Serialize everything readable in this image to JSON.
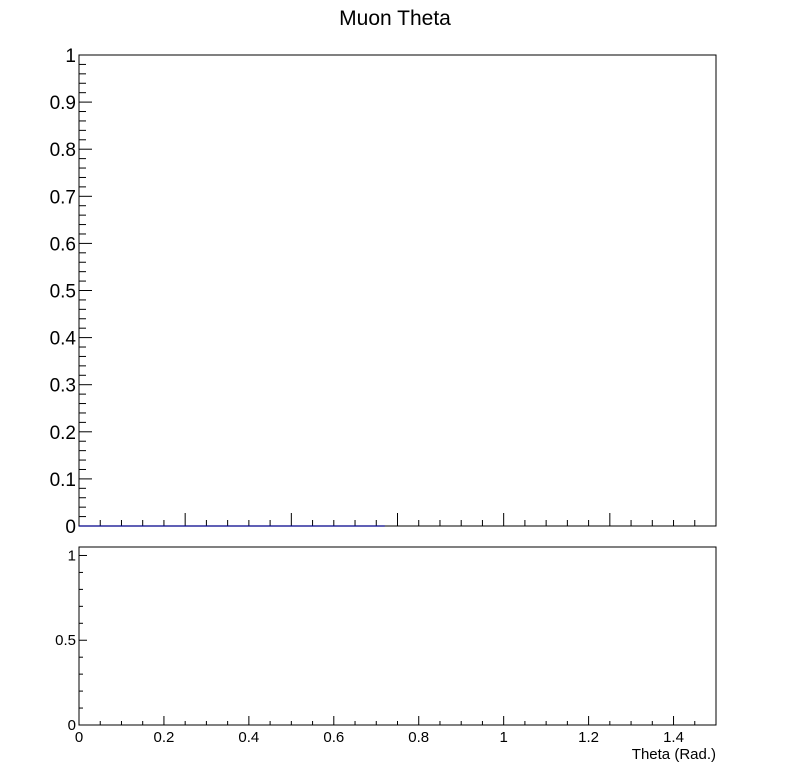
{
  "chart_data": [
    {
      "type": "line",
      "title": "Muon Theta",
      "xlabel": "",
      "ylabel": "",
      "xlim": [
        0,
        1.5
      ],
      "ylim": [
        0,
        1
      ],
      "y_tick_labels": [
        "0",
        "0.1",
        "0.2",
        "0.3",
        "0.4",
        "0.5",
        "0.6",
        "0.7",
        "0.8",
        "0.9",
        "1"
      ],
      "series": [
        {
          "x": [
            0,
            0.72
          ],
          "values": [
            0,
            0
          ],
          "color": "#00008b"
        }
      ],
      "grid": false
    },
    {
      "type": "line",
      "title": "",
      "xlabel": "Theta (Rad.)",
      "ylabel": "",
      "xlim": [
        0,
        1.5
      ],
      "ylim": [
        0,
        1.05
      ],
      "x_tick_labels": [
        "0",
        "0.2",
        "0.4",
        "0.6",
        "0.8",
        "1",
        "1.2",
        "1.4"
      ],
      "y_tick_labels": [
        "0",
        "0.5",
        "1"
      ],
      "series": [],
      "grid": false
    }
  ]
}
